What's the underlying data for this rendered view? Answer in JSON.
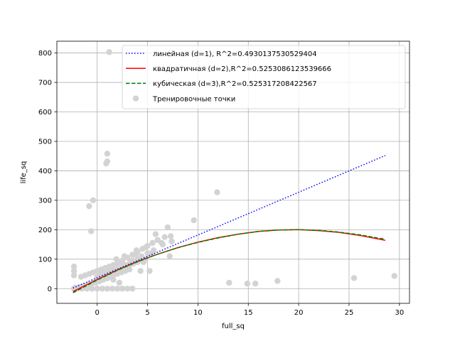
{
  "chart_data": {
    "type": "scatter",
    "xlabel": "full_sq",
    "ylabel": "life_sq",
    "xlim": [
      -4,
      31
    ],
    "ylim": [
      -50,
      840
    ],
    "x_ticks": [
      0,
      5,
      10,
      15,
      20,
      25,
      30
    ],
    "y_ticks": [
      0,
      100,
      200,
      300,
      400,
      500,
      600,
      700,
      800
    ],
    "grid": true,
    "legend_position": "top-right",
    "series": [
      {
        "name": "линейная (d=1), R^2=0.4930137530529404",
        "kind": "line",
        "style": "dotted",
        "color": "#0000ff",
        "x": [
          -2.4,
          28.6
        ],
        "y": [
          2,
          452
        ]
      },
      {
        "name": "квадратичная (d=2),R^2=0.5253086123539666",
        "kind": "line",
        "style": "solid",
        "color": "#ff0000",
        "x": [
          -2.4,
          0,
          2,
          4,
          6,
          8,
          10,
          12,
          14,
          16,
          18,
          20,
          22,
          24,
          26,
          28,
          28.6
        ],
        "y": [
          -10,
          31,
          63,
          92,
          117,
          139,
          158,
          173,
          185,
          194,
          199,
          200,
          197,
          191,
          181,
          168,
          164
        ]
      },
      {
        "name": "кубическая (d=3),R^2=0.525317208422567",
        "kind": "line",
        "style": "dashed",
        "color": "#008000",
        "x": [
          -2.4,
          0,
          2,
          4,
          6,
          8,
          10,
          12,
          14,
          16,
          18,
          20,
          22,
          24,
          26,
          28,
          28.6
        ],
        "y": [
          -14,
          29,
          62,
          91,
          117,
          139,
          157,
          172,
          185,
          194,
          199,
          200,
          198,
          192,
          183,
          171,
          168
        ]
      },
      {
        "name": "Тренировочные точки",
        "kind": "scatter",
        "color": "#d3d3d3",
        "x": [
          1.2,
          1.0,
          1.0,
          0.9,
          -0.4,
          -0.8,
          -0.6,
          11.9,
          9.6,
          7.0,
          7.3,
          6.7,
          7.4,
          6.4,
          5.6,
          5.0,
          4.4,
          4.0,
          3.3,
          3.0,
          2.6,
          2.1,
          1.8,
          1.4,
          1.0,
          0.6,
          0.2,
          -0.2,
          -0.6,
          -1.0,
          -1.4,
          -1.8,
          -2.2,
          -2.3,
          -2.3,
          -2.0,
          -1.5,
          -1.0,
          -0.5,
          0.0,
          0.5,
          1.0,
          1.5,
          2.0,
          2.5,
          3.0,
          3.5,
          0.2,
          0.6,
          1.1,
          1.5,
          2.0,
          2.5,
          3.0,
          3.5,
          4.0,
          4.5,
          5.0,
          5.5,
          6.0,
          0.0,
          0.4,
          0.8,
          1.2,
          1.6,
          2.0,
          2.4,
          2.8,
          3.2,
          3.6,
          4.0,
          4.4,
          4.8,
          -1.2,
          -0.8,
          -0.4,
          0.0,
          0.4,
          0.8,
          1.2,
          1.6,
          2.0,
          2.4,
          2.8,
          3.2,
          -1.6,
          -1.2,
          -0.8,
          -0.4,
          0.0,
          0.4,
          0.8,
          1.2,
          1.6,
          2.0,
          2.4,
          5.8,
          6.5,
          7.2,
          4.8,
          5.4,
          3.8,
          4.3,
          3.5,
          2.8,
          2.2,
          1.6,
          1.9,
          2.7,
          3.1,
          3.9,
          4.6,
          5.2,
          -2.3,
          -2.3,
          -2.3,
          13.1,
          14.9,
          15.7,
          17.9,
          25.5,
          29.5
        ],
        "y": [
          803,
          458,
          432,
          425,
          300,
          280,
          195,
          327,
          232,
          208,
          178,
          175,
          160,
          155,
          130,
          120,
          110,
          100,
          90,
          80,
          70,
          60,
          50,
          42,
          35,
          30,
          25,
          20,
          15,
          10,
          8,
          5,
          3,
          0,
          0,
          0,
          0,
          0,
          0,
          0,
          0,
          0,
          0,
          0,
          0,
          0,
          0,
          55,
          60,
          68,
          75,
          85,
          95,
          105,
          115,
          125,
          135,
          145,
          155,
          165,
          40,
          45,
          50,
          55,
          60,
          65,
          70,
          75,
          80,
          85,
          90,
          95,
          100,
          10,
          15,
          20,
          25,
          30,
          35,
          40,
          45,
          50,
          55,
          60,
          65,
          40,
          45,
          50,
          55,
          60,
          65,
          70,
          75,
          80,
          85,
          90,
          185,
          150,
          110,
          140,
          120,
          115,
          60,
          95,
          80,
          20,
          30,
          100,
          110,
          70,
          130,
          90,
          60,
          75,
          60,
          45,
          20,
          17,
          17,
          26,
          36,
          43
        ]
      }
    ]
  },
  "colors": {
    "grid": "#b0b0b0",
    "axis": "#000000",
    "background": "#ffffff"
  }
}
